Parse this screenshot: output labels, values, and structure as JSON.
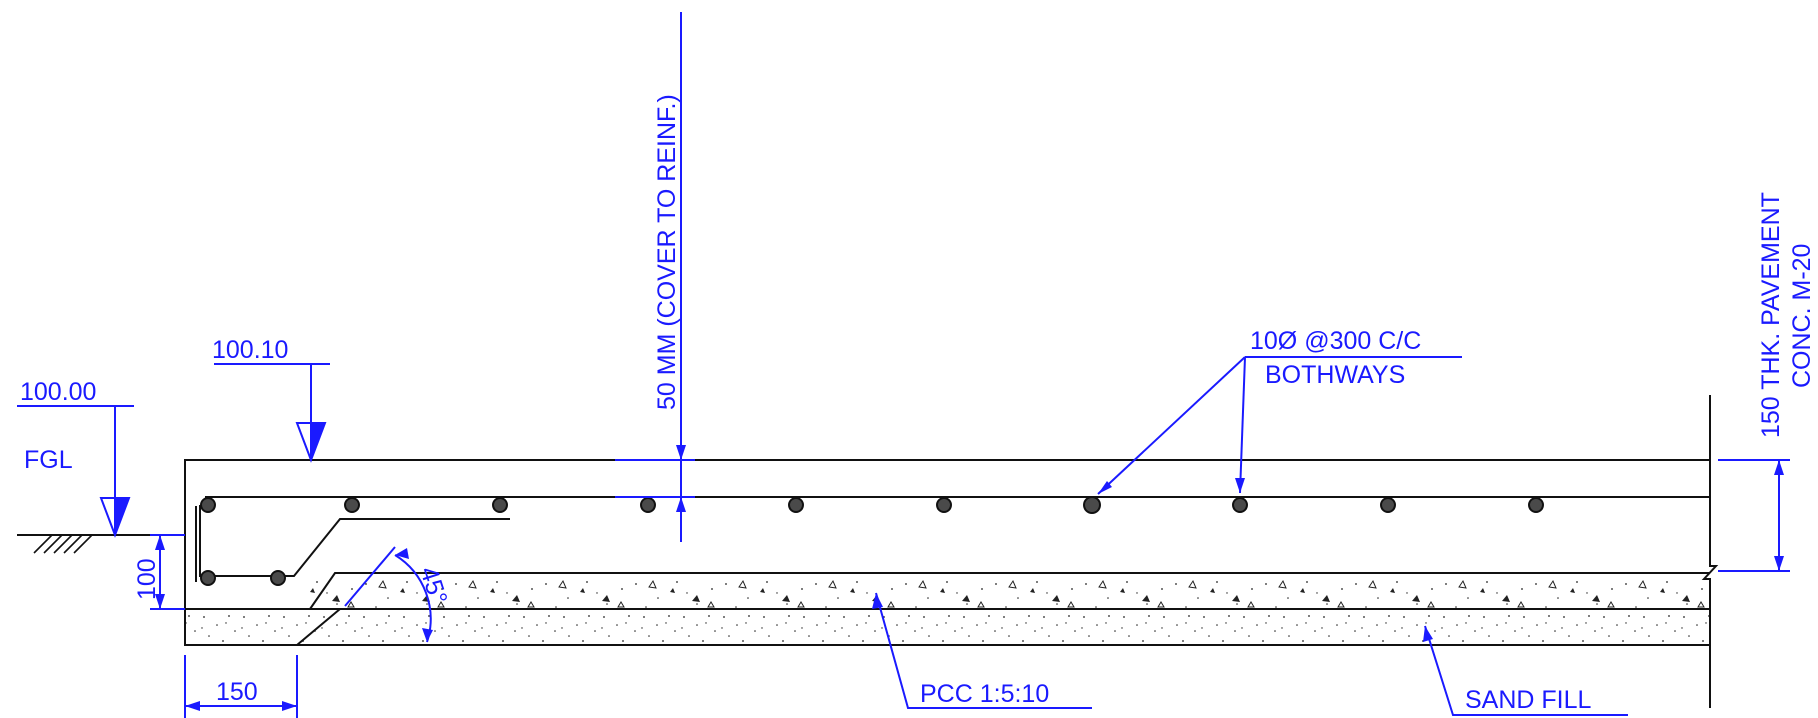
{
  "labels": {
    "fgl_level": "100.00",
    "fgl": "FGL",
    "top_level": "100.10",
    "cover_note": "50 MM (COVER TO REINF.)",
    "reinf_line1": "10Ø @300 C/C",
    "reinf_line2": "BOTHWAYS",
    "pavement_line1": "150 THK. PAVEMENT",
    "pavement_line2": "CONC. M-20",
    "dim_100": "100",
    "dim_150": "150",
    "angle": "45°",
    "pcc": "PCC 1:5:10",
    "sand_fill": "SAND FILL"
  },
  "colors": {
    "annotation": "#1a1aff",
    "linework": "#111111",
    "rebar": "#4a4a4a"
  }
}
